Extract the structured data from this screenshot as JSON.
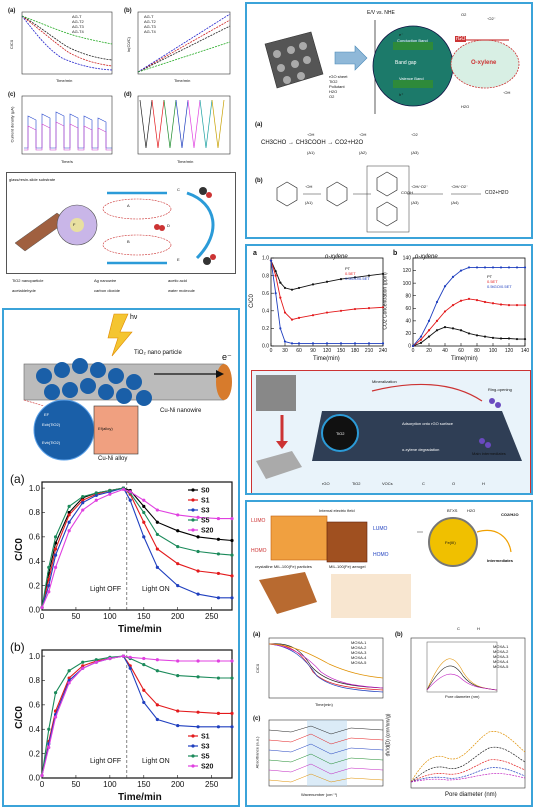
{
  "panel_tl": {
    "a_label": "(a)",
    "b_label": "(b)",
    "c_label": "(c)",
    "d_label": "(d)",
    "a_xlabel": "Time/min",
    "b_xlabel": "Time/min",
    "c_xlabel": "Time/s",
    "d_xlabel": "Time/min",
    "a_ylabel": "C/C0",
    "b_ylabel": "ln(C0/C)",
    "c_ylabel": "Current density (μA)",
    "legend_a": [
      "AG-T",
      "AG-T2",
      "AG-T3",
      "AG-T4"
    ],
    "legend_b": [
      "AG-T",
      "AG-T2",
      "AG-T3",
      "AG-T4"
    ],
    "schematic_left": "glass/resin-slide substrate",
    "schematic_labels": [
      "A",
      "B",
      "C",
      "D",
      "E",
      "F"
    ],
    "legend_items": [
      "TiO2 nanoparticle",
      "Ag nanowire",
      "acetic acid",
      "acetaldehyde",
      "carbon dioxide",
      "water molecule"
    ]
  },
  "panel_tr": {
    "axis_label": "E/V vs. NHE",
    "cb": "Conduction Band",
    "bandgap": "Band gap",
    "vb": "Valence Band",
    "rgo": "rGO",
    "oxylene": "O-xylene",
    "legend": [
      "rGO sheet",
      "TiO2",
      "Pollutant",
      "H2O",
      "O2"
    ],
    "species": [
      "O2",
      "·O2⁻",
      "·OH",
      "H2O",
      "e⁻",
      "h⁺"
    ],
    "scheme_a_label": "(a)",
    "scheme_b_label": "(b)",
    "scheme_a": "CH3CHO → CH3COOH → CO2+H2O",
    "scheme_a_steps": [
      "·OH",
      "(A1)",
      "·OH",
      "(A2)",
      "·O2",
      "(A3)"
    ],
    "scheme_b_steps": [
      "·OH",
      "(A1)",
      "·OH/·O2⁻",
      "(A3)",
      "·OH/·O2⁻",
      "(A4)"
    ],
    "scheme_b_end": "CO2+H2O",
    "cooh": "COOH"
  },
  "panel_mr": {
    "a_label": "a",
    "b_label": "b",
    "a_title": "o-xylene",
    "b_title": "o-xylene",
    "a_xlabel": "Time(min)",
    "b_xlabel": "Time(min)",
    "a_ylabel": "C/C0",
    "b_ylabel": "CO2 Concentration (ppm)",
    "legend": [
      "PT",
      "0.5ET",
      "0.5tGO/0.5ET"
    ],
    "scheme_labels": [
      "Mineralization",
      "Ring-opening",
      "Adsorption onto rGO surface",
      "Main intermediates",
      "o-xylene degradation",
      "TiO2"
    ],
    "bottom_legend": [
      "rGO",
      "TiO2",
      "VOCs",
      "C",
      "O",
      "H"
    ]
  },
  "panel_ml": {
    "hv": "hν",
    "tio2": "TiO₂ nano particle",
    "electron": "e⁻",
    "nanowire": "Cu-Ni nanowire",
    "alloy": "Cu-Ni alloy",
    "ecb": "Ecb(TiO2)",
    "evb": "Evb(TiO2)",
    "efalloy": "Ef(alloy)",
    "ef": "EF",
    "a_label": "(a)",
    "b_label": "(b)",
    "xlabel": "Time/min",
    "ylabel": "C/C0",
    "light_off": "Light OFF",
    "light_on": "Light ON",
    "legend_a": [
      "S0",
      "S1",
      "S3",
      "S5",
      "S20"
    ],
    "legend_b": [
      "S1",
      "S3",
      "S5",
      "S20"
    ],
    "xticks": [
      "0",
      "50",
      "100",
      "150",
      "200",
      "250"
    ],
    "yticks": [
      "0.0",
      "0.2",
      "0.4",
      "0.6",
      "0.8",
      "1.0"
    ]
  },
  "panel_br": {
    "lumo": "LUMO",
    "homo": "HOMO",
    "internal_field": "Internal electric field",
    "crystalline": "crystalline MIL-100(Fe) particles",
    "aerogel": "MIL-100(Fe) aerogel",
    "btxs": "BTXS",
    "h2o": "H2O",
    "co2": "CO2/H2O",
    "intermediates": "Intermediates",
    "core": "Fe(III)",
    "ch_legend": [
      "C",
      "H"
    ],
    "a_label": "(a)",
    "b_label": "(b)",
    "c_label": "(c)",
    "legend_a": [
      "MOXA-1",
      "MOXA-2",
      "MOXA-3",
      "MOXA-4",
      "MOXA-5"
    ],
    "legend_b": [
      "MOXA-1",
      "MOXA-2",
      "MOXA-3",
      "MOXA-4",
      "MOXA-5"
    ],
    "a_xlabel": "Time(min)",
    "a_ylabel": "C/C0",
    "b_xlabel": "Pore diameter (nm)",
    "b_ylabel": "dV/d(D) (cm³/nm/g)",
    "c_xlabel": "Wavenumber (cm⁻¹)",
    "c_ylabel": "Absorbance (a.u.)",
    "inset_xlabel": "Pore diameter (nm)"
  },
  "chart_data": [
    {
      "type": "line",
      "title": "",
      "xlabel": "Time/min",
      "ylabel": "C/C0",
      "xlim": [
        0,
        280
      ],
      "ylim": [
        0,
        1.05
      ],
      "series": [
        {
          "name": "S0",
          "color": "#000000",
          "x": [
            0,
            10,
            20,
            40,
            60,
            80,
            100,
            120,
            130,
            150,
            170,
            200,
            230,
            260,
            280
          ],
          "y": [
            0.02,
            0.3,
            0.55,
            0.8,
            0.92,
            0.96,
            0.98,
            1.0,
            0.98,
            0.85,
            0.72,
            0.65,
            0.6,
            0.58,
            0.57
          ]
        },
        {
          "name": "S1",
          "color": "#e31a1c",
          "x": [
            0,
            10,
            20,
            40,
            60,
            80,
            100,
            120,
            130,
            150,
            170,
            200,
            230,
            260,
            280
          ],
          "y": [
            0.02,
            0.25,
            0.5,
            0.78,
            0.9,
            0.95,
            0.98,
            1.0,
            0.95,
            0.72,
            0.5,
            0.38,
            0.32,
            0.3,
            0.28
          ]
        },
        {
          "name": "S3",
          "color": "#1f3fbf",
          "x": [
            0,
            10,
            20,
            40,
            60,
            80,
            100,
            120,
            130,
            150,
            170,
            200,
            230,
            260,
            280
          ],
          "y": [
            0.02,
            0.2,
            0.45,
            0.72,
            0.88,
            0.94,
            0.97,
            1.0,
            0.9,
            0.6,
            0.35,
            0.2,
            0.13,
            0.1,
            0.1
          ]
        },
        {
          "name": "S5",
          "color": "#1a8a5a",
          "x": [
            0,
            10,
            20,
            40,
            60,
            80,
            100,
            120,
            130,
            150,
            170,
            200,
            230,
            260,
            280
          ],
          "y": [
            0.02,
            0.35,
            0.6,
            0.85,
            0.93,
            0.96,
            0.98,
            1.0,
            0.96,
            0.8,
            0.62,
            0.52,
            0.48,
            0.46,
            0.45
          ]
        },
        {
          "name": "S20",
          "color": "#e040e0",
          "x": [
            0,
            10,
            20,
            40,
            60,
            80,
            100,
            120,
            130,
            150,
            170,
            200,
            230,
            260,
            280
          ],
          "y": [
            0.02,
            0.15,
            0.35,
            0.65,
            0.82,
            0.9,
            0.95,
            0.99,
            0.97,
            0.9,
            0.82,
            0.78,
            0.76,
            0.75,
            0.75
          ]
        }
      ]
    },
    {
      "type": "line",
      "title": "",
      "xlabel": "Time/min",
      "ylabel": "C/C0",
      "xlim": [
        0,
        280
      ],
      "ylim": [
        0,
        1.05
      ],
      "series": [
        {
          "name": "S1",
          "color": "#e31a1c",
          "x": [
            0,
            10,
            20,
            40,
            60,
            80,
            100,
            120,
            130,
            150,
            170,
            200,
            230,
            260,
            280
          ],
          "y": [
            0.02,
            0.3,
            0.55,
            0.82,
            0.92,
            0.96,
            0.98,
            1.0,
            0.92,
            0.72,
            0.6,
            0.55,
            0.54,
            0.53,
            0.53
          ]
        },
        {
          "name": "S3",
          "color": "#1f3fbf",
          "x": [
            0,
            10,
            20,
            40,
            60,
            80,
            100,
            120,
            130,
            150,
            170,
            200,
            230,
            260,
            280
          ],
          "y": [
            0.02,
            0.28,
            0.52,
            0.8,
            0.9,
            0.95,
            0.98,
            1.0,
            0.9,
            0.62,
            0.48,
            0.43,
            0.42,
            0.42,
            0.42
          ]
        },
        {
          "name": "S5",
          "color": "#1a8a5a",
          "x": [
            0,
            10,
            20,
            40,
            60,
            80,
            100,
            120,
            130,
            150,
            170,
            200,
            230,
            260,
            280
          ],
          "y": [
            0.02,
            0.4,
            0.7,
            0.88,
            0.95,
            0.97,
            0.99,
            1.0,
            0.98,
            0.93,
            0.88,
            0.84,
            0.83,
            0.82,
            0.82
          ]
        },
        {
          "name": "S20",
          "color": "#e040e0",
          "x": [
            0,
            10,
            20,
            40,
            60,
            80,
            100,
            120,
            130,
            150,
            170,
            200,
            230,
            260,
            280
          ],
          "y": [
            0.02,
            0.25,
            0.5,
            0.78,
            0.9,
            0.95,
            0.98,
            1.0,
            0.99,
            0.98,
            0.97,
            0.96,
            0.96,
            0.96,
            0.96
          ]
        }
      ]
    },
    {
      "type": "line",
      "title": "o-xylene",
      "xlabel": "Time(min)",
      "ylabel": "C/C0",
      "xlim": [
        0,
        240
      ],
      "ylim": [
        0,
        1.0
      ],
      "series": [
        {
          "name": "PT",
          "color": "#111111",
          "x": [
            0,
            10,
            20,
            30,
            45,
            60,
            90,
            120,
            150,
            180,
            210,
            240
          ],
          "y": [
            0.97,
            0.85,
            0.72,
            0.66,
            0.64,
            0.66,
            0.7,
            0.73,
            0.76,
            0.78,
            0.8,
            0.82
          ]
        },
        {
          "name": "0.5ET",
          "color": "#e31a1c",
          "x": [
            0,
            10,
            20,
            30,
            45,
            60,
            90,
            120,
            150,
            180,
            210,
            240
          ],
          "y": [
            0.97,
            0.8,
            0.55,
            0.38,
            0.3,
            0.32,
            0.35,
            0.38,
            0.4,
            0.42,
            0.43,
            0.44
          ]
        },
        {
          "name": "0.5tGO/0.5ET",
          "color": "#1f3fbf",
          "x": [
            0,
            10,
            20,
            30,
            45,
            60,
            90,
            120,
            150,
            180,
            210,
            240
          ],
          "y": [
            0.97,
            0.6,
            0.2,
            0.05,
            0.03,
            0.03,
            0.03,
            0.03,
            0.03,
            0.03,
            0.03,
            0.03
          ]
        }
      ]
    },
    {
      "type": "line",
      "title": "o-xylene",
      "xlabel": "Time(min)",
      "ylabel": "CO2 Concentration (ppm)",
      "xlim": [
        0,
        140
      ],
      "ylim": [
        0,
        140
      ],
      "series": [
        {
          "name": "PT",
          "color": "#111111",
          "x": [
            0,
            10,
            20,
            30,
            40,
            50,
            60,
            70,
            80,
            90,
            100,
            110,
            120,
            130,
            140
          ],
          "y": [
            0,
            5,
            15,
            25,
            30,
            28,
            25,
            20,
            17,
            15,
            13,
            12,
            12,
            11,
            11
          ]
        },
        {
          "name": "0.5ET",
          "color": "#e31a1c",
          "x": [
            0,
            10,
            20,
            30,
            40,
            50,
            60,
            70,
            80,
            90,
            100,
            110,
            120,
            130,
            140
          ],
          "y": [
            0,
            10,
            25,
            40,
            55,
            65,
            72,
            75,
            73,
            70,
            68,
            66,
            65,
            65,
            65
          ]
        },
        {
          "name": "0.5tGO/0.5ET",
          "color": "#1f3fbf",
          "x": [
            0,
            10,
            20,
            30,
            40,
            50,
            60,
            70,
            80,
            90,
            100,
            110,
            120,
            130,
            140
          ],
          "y": [
            0,
            15,
            40,
            70,
            95,
            110,
            120,
            125,
            125,
            125,
            125,
            125,
            125,
            125,
            125
          ]
        }
      ]
    }
  ]
}
